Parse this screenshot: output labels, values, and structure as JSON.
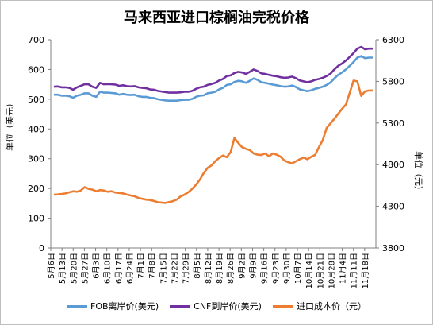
{
  "chart_data": {
    "type": "line",
    "title": "马来西亚进口棕榈油完税价格",
    "ylabel_left": "单位（美元）",
    "ylabel_right": "单位（元）",
    "ylim_left": [
      0,
      700
    ],
    "yticks_left": [
      0,
      100,
      200,
      300,
      400,
      500,
      600,
      700
    ],
    "ylim_right": [
      3800,
      6300
    ],
    "yticks_right": [
      3800,
      4300,
      4800,
      5300,
      5800,
      6300
    ],
    "grid": false,
    "legend_position": "bottom",
    "x_tick_labels": [
      "5月6日",
      "5月13日",
      "5月20日",
      "5月27日",
      "6月3日",
      "6月10日",
      "6月17日",
      "6月24日",
      "7月1日",
      "7月8日",
      "7月15日",
      "7月22日",
      "7月29日",
      "8月5日",
      "8月12日",
      "8月19日",
      "8月26日",
      "9月2日",
      "9月9日",
      "9月16日",
      "9月23日",
      "9月30日",
      "10月7日",
      "10月14日",
      "10月21日",
      "10月28日",
      "11月4日",
      "11月11日",
      "11月18日"
    ],
    "series": [
      {
        "name": "FOB离岸价(美元)",
        "axis": "left",
        "color": "#5b9bd5",
        "values": [
          515,
          515,
          512,
          512,
          510,
          505,
          512,
          515,
          520,
          520,
          512,
          508,
          525,
          522,
          522,
          521,
          520,
          515,
          518,
          515,
          514,
          515,
          510,
          508,
          508,
          505,
          504,
          500,
          498,
          496,
          495,
          495,
          495,
          497,
          498,
          498,
          501,
          508,
          512,
          513,
          520,
          522,
          525,
          533,
          538,
          548,
          550,
          558,
          562,
          560,
          555,
          562,
          570,
          565,
          557,
          555,
          552,
          549,
          547,
          544,
          542,
          543,
          546,
          541,
          533,
          530,
          527,
          530,
          535,
          538,
          542,
          548,
          556,
          570,
          582,
          590,
          600,
          612,
          625,
          640,
          645,
          638,
          640,
          640
        ]
      },
      {
        "name": "CNF到岸价(美元)",
        "axis": "left",
        "color": "#7030a0",
        "values": [
          542,
          543,
          540,
          540,
          538,
          532,
          540,
          545,
          550,
          550,
          542,
          538,
          555,
          550,
          551,
          550,
          549,
          545,
          547,
          544,
          543,
          544,
          540,
          538,
          537,
          533,
          532,
          528,
          526,
          524,
          522,
          522,
          522,
          523,
          525,
          525,
          528,
          535,
          540,
          542,
          548,
          551,
          555,
          563,
          568,
          578,
          580,
          588,
          592,
          590,
          585,
          592,
          600,
          595,
          587,
          585,
          582,
          579,
          577,
          574,
          572,
          573,
          576,
          571,
          563,
          560,
          557,
          560,
          565,
          568,
          572,
          578,
          586,
          600,
          612,
          620,
          630,
          642,
          655,
          670,
          676,
          668,
          670,
          670
        ]
      },
      {
        "name": "进口成本价（元）",
        "axis": "right",
        "color": "#ed7d31",
        "values": [
          4440,
          4442,
          4448,
          4455,
          4468,
          4480,
          4475,
          4490,
          4530,
          4510,
          4500,
          4480,
          4495,
          4490,
          4475,
          4480,
          4465,
          4460,
          4455,
          4440,
          4430,
          4420,
          4400,
          4390,
          4380,
          4375,
          4365,
          4350,
          4345,
          4340,
          4352,
          4362,
          4380,
          4420,
          4440,
          4470,
          4510,
          4560,
          4620,
          4700,
          4760,
          4790,
          4840,
          4880,
          4910,
          4890,
          4950,
          5120,
          5060,
          5010,
          4990,
          4975,
          4935,
          4920,
          4915,
          4935,
          4900,
          4935,
          4920,
          4895,
          4850,
          4830,
          4815,
          4840,
          4865,
          4885,
          4865,
          4895,
          4915,
          5010,
          5095,
          5240,
          5295,
          5350,
          5410,
          5470,
          5520,
          5660,
          5810,
          5800,
          5625,
          5680,
          5690,
          5690
        ]
      }
    ]
  }
}
